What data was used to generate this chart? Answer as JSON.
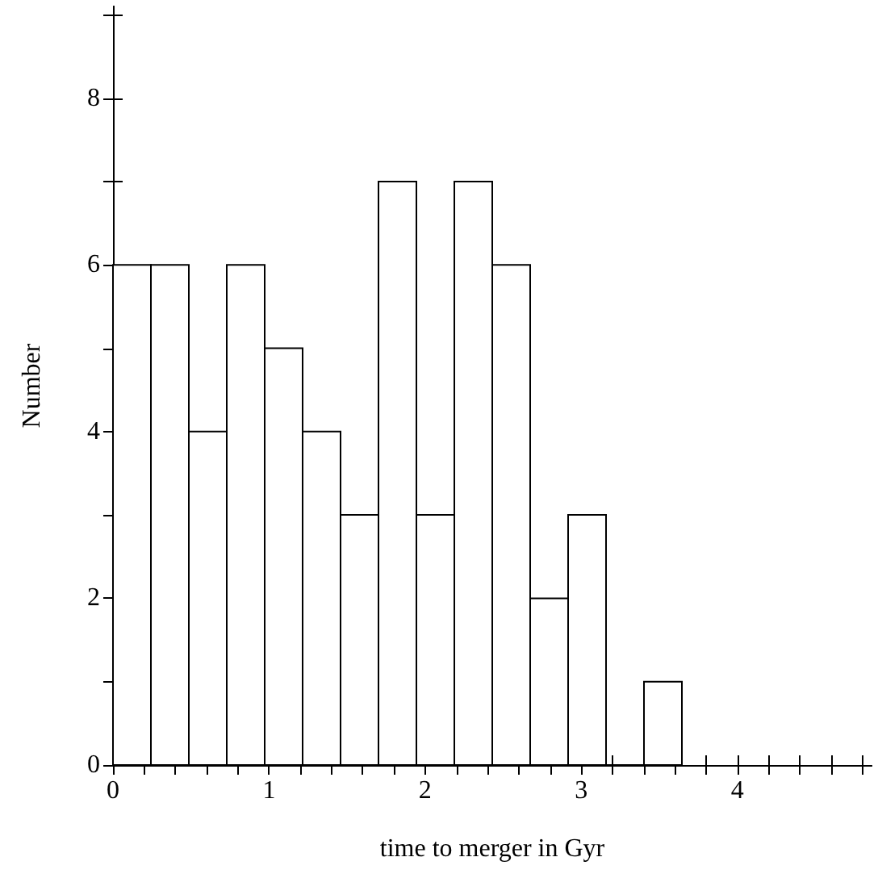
{
  "chart_data": {
    "type": "histogram",
    "xlabel": "time to merger in Gyr",
    "ylabel": "Number",
    "bins": [
      0,
      0.243,
      0.486,
      0.729,
      0.972,
      1.215,
      1.458,
      1.701,
      1.944,
      2.187,
      2.43,
      2.673,
      2.916,
      3.159,
      3.402,
      3.645
    ],
    "values": [
      6,
      6,
      4,
      6,
      5,
      4,
      3,
      7,
      3,
      7,
      6,
      2,
      3,
      0,
      1
    ],
    "color": "#000000",
    "xlim": [
      0,
      4.86
    ],
    "xticks": [
      0,
      {
        "value": 0.2,
        "label": null
      },
      {
        "value": 0.4,
        "label": null
      },
      {
        "value": 0.6,
        "label": null
      },
      {
        "value": 0.8,
        "label": null
      },
      1,
      {
        "value": 1.2,
        "label": null
      },
      {
        "value": 1.4,
        "label": null
      },
      {
        "value": 1.6,
        "label": null
      },
      {
        "value": 1.8,
        "label": null
      },
      2,
      {
        "value": 2.2,
        "label": null
      },
      {
        "value": 2.4,
        "label": null
      },
      {
        "value": 2.6,
        "label": null
      },
      {
        "value": 2.8,
        "label": null
      },
      3,
      {
        "value": 3.2,
        "label": null
      },
      {
        "value": 3.4,
        "label": null
      },
      {
        "value": 3.6,
        "label": null
      },
      {
        "value": 3.8,
        "label": null
      },
      4,
      {
        "value": 4.2,
        "label": null
      },
      {
        "value": 4.4,
        "label": null
      },
      {
        "value": 4.6,
        "label": null
      },
      {
        "value": 4.8,
        "label": null
      }
    ],
    "ylim": [
      0,
      9.1
    ],
    "yticks": [
      0,
      {
        "value": 1,
        "label": null
      },
      2,
      {
        "value": 3,
        "label": null
      },
      4,
      {
        "value": 5,
        "label": null
      },
      6,
      {
        "value": 7,
        "label": null
      },
      8,
      {
        "value": 9,
        "label": null
      }
    ],
    "grid": false
  }
}
